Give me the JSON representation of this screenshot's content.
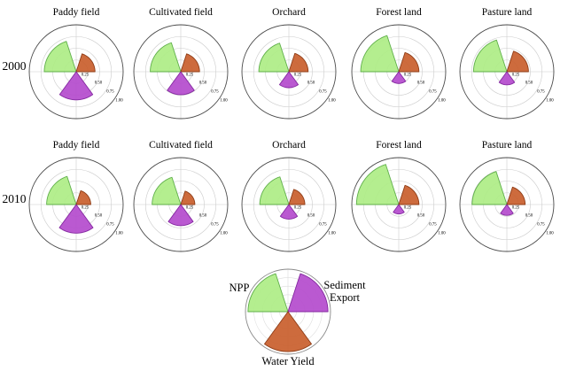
{
  "figure": {
    "row_labels": [
      "2000",
      "2010"
    ],
    "column_titles": [
      "Paddy field",
      "Cultivated field",
      "Orchard",
      "Forest land",
      "Pasture land"
    ],
    "radial_tick_labels": [
      "0.25",
      "0.50",
      "0.75",
      "1.00"
    ]
  },
  "colors": {
    "npp_fill": "#aeed85",
    "npp_edge": "#5faf4a",
    "water_yield_fill": "#c95e2c",
    "water_yield_edge": "#8f3d17",
    "sediment_export_fill": "#b44bcd",
    "sediment_export_edge": "#8428a0",
    "grid": "#cccccc",
    "outer_circle": "#4a4a4a",
    "legend_grid": "#dddddd",
    "legend_outer_circle": "#8a8a8a",
    "tick_text": "#111111"
  },
  "chart_data": {
    "type": "polar-bar",
    "description": "Grid of rose (polar sector) charts showing normalized ecosystem service values (0-1) for five land-use types in 2000 and 2010, with a legend rose chart mapping colors to NPP, Sediment Export and Water Yield",
    "series": [
      {
        "key": "npp",
        "label": "NPP",
        "color": "#aeed85"
      },
      {
        "key": "water_yield",
        "label": "Water Yield",
        "color": "#c95e2c"
      },
      {
        "key": "sediment_export",
        "label": "Sediment Export",
        "color": "#b44bcd"
      }
    ],
    "rlim": [
      0,
      1
    ],
    "radial_ticks": [
      0.25,
      0.5,
      0.75,
      1.0
    ],
    "radial_tick_labels": [
      "0.25",
      "0.50",
      "0.75",
      "1.00"
    ],
    "grid": true,
    "legend_position": "bottom-center",
    "rows": [
      {
        "year": "2000",
        "charts": [
          {
            "title": "Paddy field",
            "npp": 0.68,
            "water_yield": 0.4,
            "sediment_export": 0.6
          },
          {
            "title": "Cultivated field",
            "npp": 0.65,
            "water_yield": 0.4,
            "sediment_export": 0.49
          },
          {
            "title": "Orchard",
            "npp": 0.64,
            "water_yield": 0.41,
            "sediment_export": 0.34
          },
          {
            "title": "Forest land",
            "npp": 0.81,
            "water_yield": 0.43,
            "sediment_export": 0.25
          },
          {
            "title": "Pasture land",
            "npp": 0.71,
            "water_yield": 0.46,
            "sediment_export": 0.28
          }
        ]
      },
      {
        "year": "2010",
        "charts": [
          {
            "title": "Paddy field",
            "npp": 0.63,
            "water_yield": 0.31,
            "sediment_export": 0.61
          },
          {
            "title": "Cultivated field",
            "npp": 0.61,
            "water_yield": 0.3,
            "sediment_export": 0.45
          },
          {
            "title": "Orchard",
            "npp": 0.62,
            "water_yield": 0.34,
            "sediment_export": 0.31
          },
          {
            "title": "Forest land",
            "npp": 0.9,
            "water_yield": 0.43,
            "sediment_export": 0.2
          },
          {
            "title": "Pasture land",
            "npp": 0.74,
            "water_yield": 0.39,
            "sediment_export": 0.23
          }
        ]
      }
    ],
    "legend": {
      "npp_label": "NPP",
      "sediment_export_label": "Sediment Export",
      "water_yield_label": "Water Yield"
    }
  }
}
